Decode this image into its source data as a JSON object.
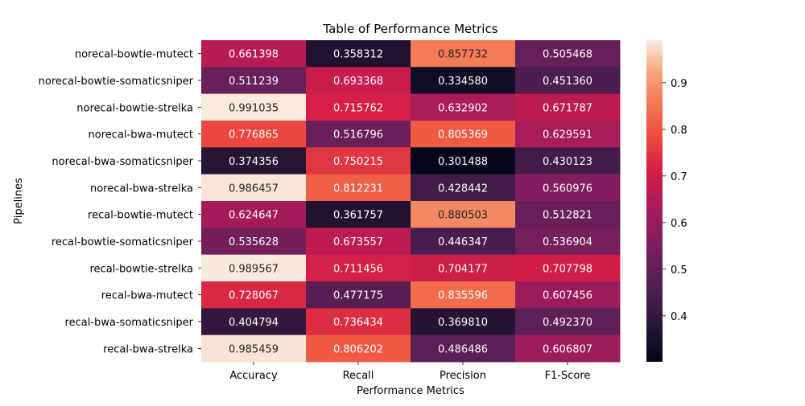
{
  "chart_data": {
    "type": "heatmap",
    "title": "Table of Performance Metrics",
    "xlabel": "Performance Metrics",
    "ylabel": "Pipelines",
    "columns": [
      "Accuracy",
      "Recall",
      "Precision",
      "F1-Score"
    ],
    "rows": [
      "norecal-bowtie-mutect",
      "norecal-bowtie-somaticsniper",
      "norecal-bowtie-strelka",
      "norecal-bwa-mutect",
      "norecal-bwa-somaticsniper",
      "norecal-bwa-strelka",
      "recal-bowtie-mutect",
      "recal-bowtie-somaticsniper",
      "recal-bowtie-strelka",
      "recal-bwa-mutect",
      "recal-bwa-somaticsniper",
      "recal-bwa-strelka"
    ],
    "values": [
      [
        0.661398,
        0.358312,
        0.857732,
        0.505468
      ],
      [
        0.511239,
        0.693368,
        0.33458,
        0.45136
      ],
      [
        0.991035,
        0.715762,
        0.632902,
        0.671787
      ],
      [
        0.776865,
        0.516796,
        0.805369,
        0.629591
      ],
      [
        0.374356,
        0.750215,
        0.301488,
        0.430123
      ],
      [
        0.986457,
        0.812231,
        0.428442,
        0.560976
      ],
      [
        0.624647,
        0.361757,
        0.880503,
        0.512821
      ],
      [
        0.535628,
        0.673557,
        0.446347,
        0.536904
      ],
      [
        0.989567,
        0.711456,
        0.704177,
        0.707798
      ],
      [
        0.728067,
        0.477175,
        0.835596,
        0.607456
      ],
      [
        0.404794,
        0.736434,
        0.36981,
        0.49237
      ],
      [
        0.985459,
        0.806202,
        0.486486,
        0.606807
      ]
    ],
    "value_labels": [
      [
        "0.661398",
        "0.358312",
        "0.857732",
        "0.505468"
      ],
      [
        "0.511239",
        "0.693368",
        "0.334580",
        "0.451360"
      ],
      [
        "0.991035",
        "0.715762",
        "0.632902",
        "0.671787"
      ],
      [
        "0.776865",
        "0.516796",
        "0.805369",
        "0.629591"
      ],
      [
        "0.374356",
        "0.750215",
        "0.301488",
        "0.430123"
      ],
      [
        "0.986457",
        "0.812231",
        "0.428442",
        "0.560976"
      ],
      [
        "0.624647",
        "0.361757",
        "0.880503",
        "0.512821"
      ],
      [
        "0.535628",
        "0.673557",
        "0.446347",
        "0.536904"
      ],
      [
        "0.989567",
        "0.711456",
        "0.704177",
        "0.707798"
      ],
      [
        "0.728067",
        "0.477175",
        "0.835596",
        "0.607456"
      ],
      [
        "0.404794",
        "0.736434",
        "0.369810",
        "0.492370"
      ],
      [
        "0.985459",
        "0.806202",
        "0.486486",
        "0.606807"
      ]
    ],
    "colormap": "rocket",
    "color_range": [
      0.301488,
      0.991035
    ],
    "colorbar_ticks": [
      0.4,
      0.5,
      0.6,
      0.7,
      0.8,
      0.9
    ],
    "colorbar_tick_labels": [
      "0.4",
      "0.5",
      "0.6",
      "0.7",
      "0.8",
      "0.9"
    ],
    "grid": false,
    "legend": "colorbar-right"
  }
}
